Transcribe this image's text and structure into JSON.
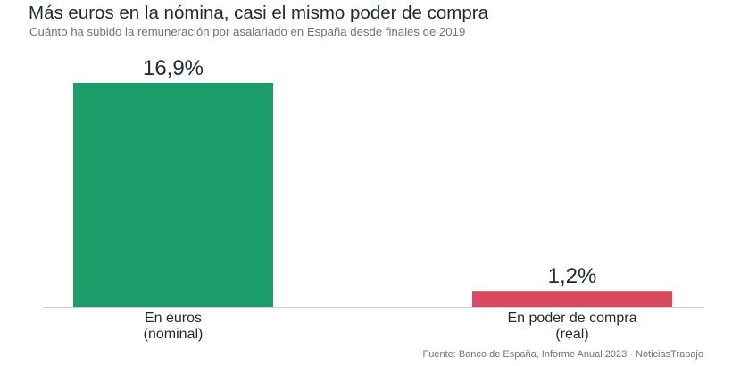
{
  "header": {
    "title": "Más euros en la nómina, casi el mismo poder de compra",
    "subtitle": "Cuánto ha subido la remuneración por asalariado en España desde finales de 2019"
  },
  "source": "Fuente: Banco de España, Informe Anual 2023 · NoticiasTrabajo",
  "chart_data": {
    "type": "bar",
    "categories": [
      [
        "En euros",
        "(nominal)"
      ],
      [
        "En poder de compra",
        "(real)"
      ]
    ],
    "values": [
      16.9,
      1.2
    ],
    "value_labels": [
      "16,9%",
      "1,2%"
    ],
    "colors": [
      "#1b9e6b",
      "#d94a5f"
    ],
    "unit": "%",
    "ylim": [
      0,
      16.9
    ],
    "grid": false,
    "legend": "none"
  }
}
